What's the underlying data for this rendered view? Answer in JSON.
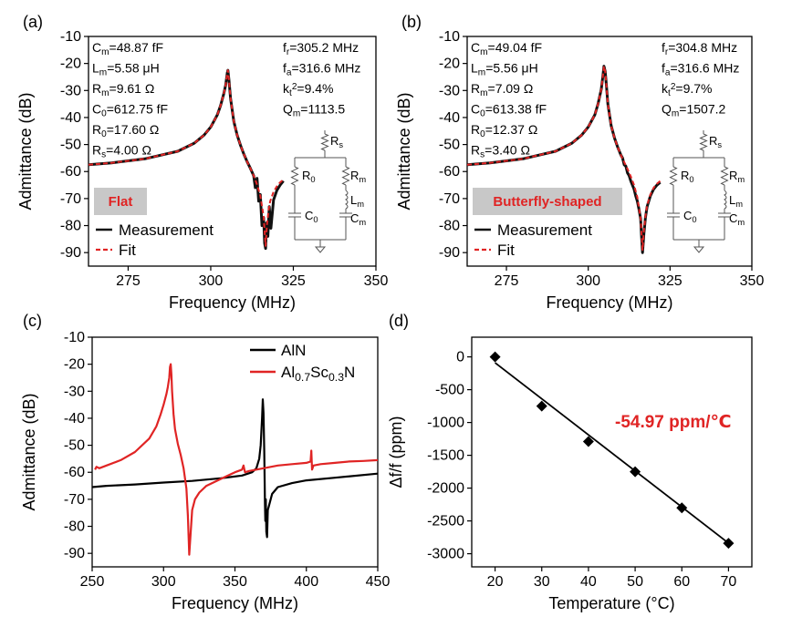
{
  "colors": {
    "measurement": "#111111",
    "fit": "#e02424",
    "aln": "#000000",
    "alscn": "#e02424",
    "slope_text": "#e02424",
    "label_box": "#c8c8c8",
    "axis": "#000000",
    "circuit": "#555555"
  },
  "chart_data": [
    {
      "id": "a",
      "panel_label": "(a)",
      "type": "line",
      "xlabel": "Frequency (MHz)",
      "ylabel": "Admittance (dB)",
      "xlim": [
        263,
        350
      ],
      "ylim": [
        -95,
        -10
      ],
      "xticks": [
        275,
        300,
        325,
        350
      ],
      "yticks": [
        -10,
        -20,
        -30,
        -40,
        -50,
        -60,
        -70,
        -80,
        -90
      ],
      "label_box": "Flat",
      "params_left": [
        {
          "sym": "C",
          "sub": "m",
          "sup": "",
          "val": "=48.87 fF"
        },
        {
          "sym": "L",
          "sub": "m",
          "sup": "",
          "val": "=5.58 μH"
        },
        {
          "sym": "R",
          "sub": "m",
          "sup": "",
          "val": "=9.61 Ω"
        },
        {
          "sym": "C",
          "sub": "0",
          "sup": "",
          "val": "=612.75 fF"
        },
        {
          "sym": "R",
          "sub": "0",
          "sup": "",
          "val": "=17.60 Ω"
        },
        {
          "sym": "R",
          "sub": "s",
          "sup": "",
          "val": "=4.00 Ω"
        }
      ],
      "params_right": [
        {
          "sym": "f",
          "sub": "r",
          "sup": "",
          "val": "=305.2 MHz"
        },
        {
          "sym": "f",
          "sub": "a",
          "sup": "",
          "val": "=316.6 MHz"
        },
        {
          "sym": "k",
          "sub": "t",
          "sup": "2",
          "val": "=9.4%"
        },
        {
          "sym": "Q",
          "sub": "m",
          "sup": "",
          "val": "=1113.5"
        }
      ],
      "legend": [
        "Measurement",
        "Fit"
      ],
      "circuit": {
        "rs": "R",
        "rs_sub": "s",
        "r0": "R",
        "r0_sub": "0",
        "rm": "R",
        "rm_sub": "m",
        "lm": "L",
        "lm_sub": "m",
        "c0": "C",
        "c0_sub": "0",
        "cm": "C",
        "cm_sub": "m"
      },
      "series": [
        {
          "name": "Measurement",
          "x": [
            263,
            270,
            280,
            290,
            295,
            298,
            300,
            302,
            303,
            304,
            304.5,
            305,
            305.2,
            305.5,
            306,
            307,
            308,
            309,
            310,
            311,
            312,
            313,
            313.5,
            314,
            314.5,
            315,
            315.5,
            316,
            316.3,
            316.6,
            316.9,
            317.3,
            317.7,
            318.2,
            319,
            320,
            321,
            322
          ],
          "y": [
            -57.5,
            -56.8,
            -55.3,
            -52.5,
            -49.5,
            -46.5,
            -43.5,
            -39,
            -35.5,
            -31,
            -28,
            -23.5,
            -22.5,
            -26,
            -33,
            -41.5,
            -46.5,
            -50.3,
            -53.5,
            -56.3,
            -58.8,
            -61.5,
            -66,
            -62.5,
            -71,
            -68.5,
            -80,
            -77,
            -86.5,
            -88.5,
            -79,
            -84,
            -73,
            -81,
            -70.5,
            -67,
            -65,
            -63.5
          ]
        },
        {
          "name": "Fit",
          "x": [
            263,
            270,
            280,
            290,
            295,
            298,
            300,
            302,
            303,
            304,
            304.5,
            305,
            305.2,
            305.5,
            306,
            307,
            308,
            309,
            310,
            311,
            312,
            313,
            314,
            315,
            316,
            316.6,
            317,
            317.5,
            318,
            319,
            320,
            321,
            322
          ],
          "y": [
            -57.5,
            -56.8,
            -55.3,
            -52.5,
            -49.5,
            -46.5,
            -43.5,
            -39,
            -35.5,
            -31,
            -28,
            -23.5,
            -22.5,
            -26,
            -33,
            -41.5,
            -46.5,
            -50.3,
            -53.5,
            -56.3,
            -58.8,
            -61.5,
            -64.8,
            -69,
            -76.5,
            -87.5,
            -80,
            -74.5,
            -71,
            -67.5,
            -65.5,
            -64,
            -63
          ]
        }
      ]
    },
    {
      "id": "b",
      "panel_label": "(b)",
      "type": "line",
      "xlabel": "Frequency (MHz)",
      "ylabel": "Admittance (dB)",
      "xlim": [
        263,
        350
      ],
      "ylim": [
        -95,
        -10
      ],
      "xticks": [
        275,
        300,
        325,
        350
      ],
      "yticks": [
        -10,
        -20,
        -30,
        -40,
        -50,
        -60,
        -70,
        -80,
        -90
      ],
      "label_box": "Butterfly-shaped",
      "params_left": [
        {
          "sym": "C",
          "sub": "m",
          "sup": "",
          "val": "=49.04 fF"
        },
        {
          "sym": "L",
          "sub": "m",
          "sup": "",
          "val": "=5.56 μH"
        },
        {
          "sym": "R",
          "sub": "m",
          "sup": "",
          "val": "=7.09 Ω"
        },
        {
          "sym": "C",
          "sub": "0",
          "sup": "",
          "val": "=613.38 fF"
        },
        {
          "sym": "R",
          "sub": "0",
          "sup": "",
          "val": "=12.37 Ω"
        },
        {
          "sym": "R",
          "sub": "s",
          "sup": "",
          "val": "=3.40 Ω"
        }
      ],
      "params_right": [
        {
          "sym": "f",
          "sub": "r",
          "sup": "",
          "val": "=304.8 MHz"
        },
        {
          "sym": "f",
          "sub": "a",
          "sup": "",
          "val": "=316.6 MHz"
        },
        {
          "sym": "k",
          "sub": "t",
          "sup": "2",
          "val": "=9.7%"
        },
        {
          "sym": "Q",
          "sub": "m",
          "sup": "",
          "val": "=1507.2"
        }
      ],
      "legend": [
        "Measurement",
        "Fit"
      ],
      "circuit": {
        "rs": "R",
        "rs_sub": "s",
        "r0": "R",
        "r0_sub": "0",
        "rm": "R",
        "rm_sub": "m",
        "lm": "L",
        "lm_sub": "m",
        "c0": "C",
        "c0_sub": "0",
        "cm": "C",
        "cm_sub": "m"
      },
      "series": [
        {
          "name": "Measurement",
          "x": [
            263,
            270,
            280,
            290,
            295,
            298,
            300,
            302,
            303,
            304,
            304.5,
            304.8,
            305.2,
            305.6,
            306,
            307,
            308,
            309,
            310,
            310.5,
            311,
            311.5,
            312,
            312.5,
            313,
            313.5,
            314,
            314.5,
            315,
            315.5,
            316,
            316.3,
            316.6,
            317,
            317.5,
            318,
            319,
            320,
            321,
            322
          ],
          "y": [
            -57.5,
            -56.8,
            -55.3,
            -52.5,
            -49.5,
            -46.5,
            -43.5,
            -39,
            -35,
            -29.5,
            -24.5,
            -21,
            -23,
            -29,
            -35,
            -43,
            -47.5,
            -51,
            -54,
            -55,
            -57.5,
            -58,
            -60.5,
            -61.5,
            -63.5,
            -65,
            -66.5,
            -69,
            -71,
            -74,
            -77.5,
            -84,
            -90,
            -83,
            -77,
            -73,
            -69,
            -66.5,
            -65,
            -64
          ]
        },
        {
          "name": "Fit",
          "x": [
            263,
            270,
            280,
            290,
            295,
            298,
            300,
            302,
            303,
            304,
            304.5,
            304.8,
            305.2,
            305.6,
            306,
            307,
            308,
            309,
            310,
            311,
            312,
            313,
            314,
            315,
            316,
            316.6,
            317,
            317.5,
            318,
            319,
            320,
            321,
            322
          ],
          "y": [
            -57.5,
            -56.8,
            -55.3,
            -52.5,
            -49.5,
            -46.5,
            -43.5,
            -39,
            -35,
            -29.5,
            -24.5,
            -21,
            -23,
            -29,
            -35,
            -43,
            -47.5,
            -51,
            -54,
            -56.5,
            -59,
            -61.8,
            -65,
            -69.5,
            -77.5,
            -89,
            -82,
            -76.5,
            -72.5,
            -68.5,
            -66,
            -64.5,
            -63.5
          ]
        }
      ]
    },
    {
      "id": "c",
      "panel_label": "(c)",
      "type": "line",
      "xlabel": "Frequency (MHz)",
      "ylabel": "Admittance (dB)",
      "xlim": [
        250,
        450
      ],
      "ylim": [
        -95,
        -10
      ],
      "xticks": [
        250,
        300,
        350,
        400,
        450
      ],
      "yticks": [
        -10,
        -20,
        -30,
        -40,
        -50,
        -60,
        -70,
        -80,
        -90
      ],
      "legend": [
        {
          "text": "AlN"
        },
        {
          "text": "Al",
          "sub1": "0.7",
          "mid": "Sc",
          "sub2": "0.3",
          "end": "N"
        }
      ],
      "series": [
        {
          "name": "AlN",
          "x": [
            250,
            260,
            280,
            300,
            320,
            340,
            355,
            362,
            365,
            367,
            368,
            369,
            369.5,
            370,
            370.5,
            371,
            371.3,
            371.6,
            372,
            372.5,
            373,
            374,
            376,
            380,
            390,
            400,
            420,
            450
          ],
          "y": [
            -65.5,
            -65,
            -64.5,
            -63.8,
            -63.2,
            -62.2,
            -61.2,
            -60,
            -58.5,
            -55,
            -50,
            -40,
            -33,
            -38,
            -52,
            -72,
            -78,
            -70,
            -82,
            -84,
            -74,
            -72,
            -68,
            -65.5,
            -64,
            -63,
            -62,
            -60.5
          ]
        },
        {
          "name": "Al0.7Sc0.3N",
          "x": [
            252,
            253,
            255,
            260,
            270,
            280,
            290,
            295,
            298,
            300,
            302,
            303,
            304,
            304.5,
            305,
            305.5,
            306,
            307,
            308,
            310,
            312,
            314,
            316,
            317,
            318,
            320,
            322,
            325,
            330,
            340,
            350,
            355,
            356,
            357,
            360,
            370,
            380,
            390,
            400,
            403,
            403.5,
            404,
            405,
            410,
            420,
            430,
            440,
            450
          ],
          "y": [
            -59,
            -58,
            -58.5,
            -57.5,
            -55.5,
            -52.5,
            -47.5,
            -43,
            -38.5,
            -35,
            -31,
            -28.5,
            -25,
            -21,
            -20,
            -24,
            -30,
            -38.5,
            -44,
            -49.5,
            -53.5,
            -58.5,
            -66,
            -76,
            -90.5,
            -74,
            -70,
            -67.5,
            -65,
            -62.5,
            -60,
            -59,
            -57.5,
            -60,
            -59.5,
            -58.5,
            -57.5,
            -57,
            -56.5,
            -56,
            -52,
            -59,
            -57.5,
            -57,
            -56.5,
            -56,
            -55.8,
            -55.5
          ]
        }
      ]
    },
    {
      "id": "d",
      "panel_label": "(d)",
      "type": "scatter",
      "xlabel": "Temperature (°C)",
      "ylabel": "Δf/f (ppm)",
      "xlim": [
        15,
        75
      ],
      "ylim": [
        -3200,
        300
      ],
      "xticks": [
        20,
        30,
        40,
        50,
        60,
        70
      ],
      "yticks": [
        0,
        -500,
        -1000,
        -1500,
        -2000,
        -2500,
        -3000
      ],
      "annotation": "-54.97 ppm/℃",
      "points": {
        "x": [
          20,
          30,
          40,
          50,
          60,
          70
        ],
        "y": [
          0,
          -750,
          -1290,
          -1750,
          -2300,
          -2840
        ]
      },
      "fit_line": {
        "slope": -54.97,
        "intercept": 1010,
        "x_range": [
          20,
          70
        ]
      }
    }
  ]
}
